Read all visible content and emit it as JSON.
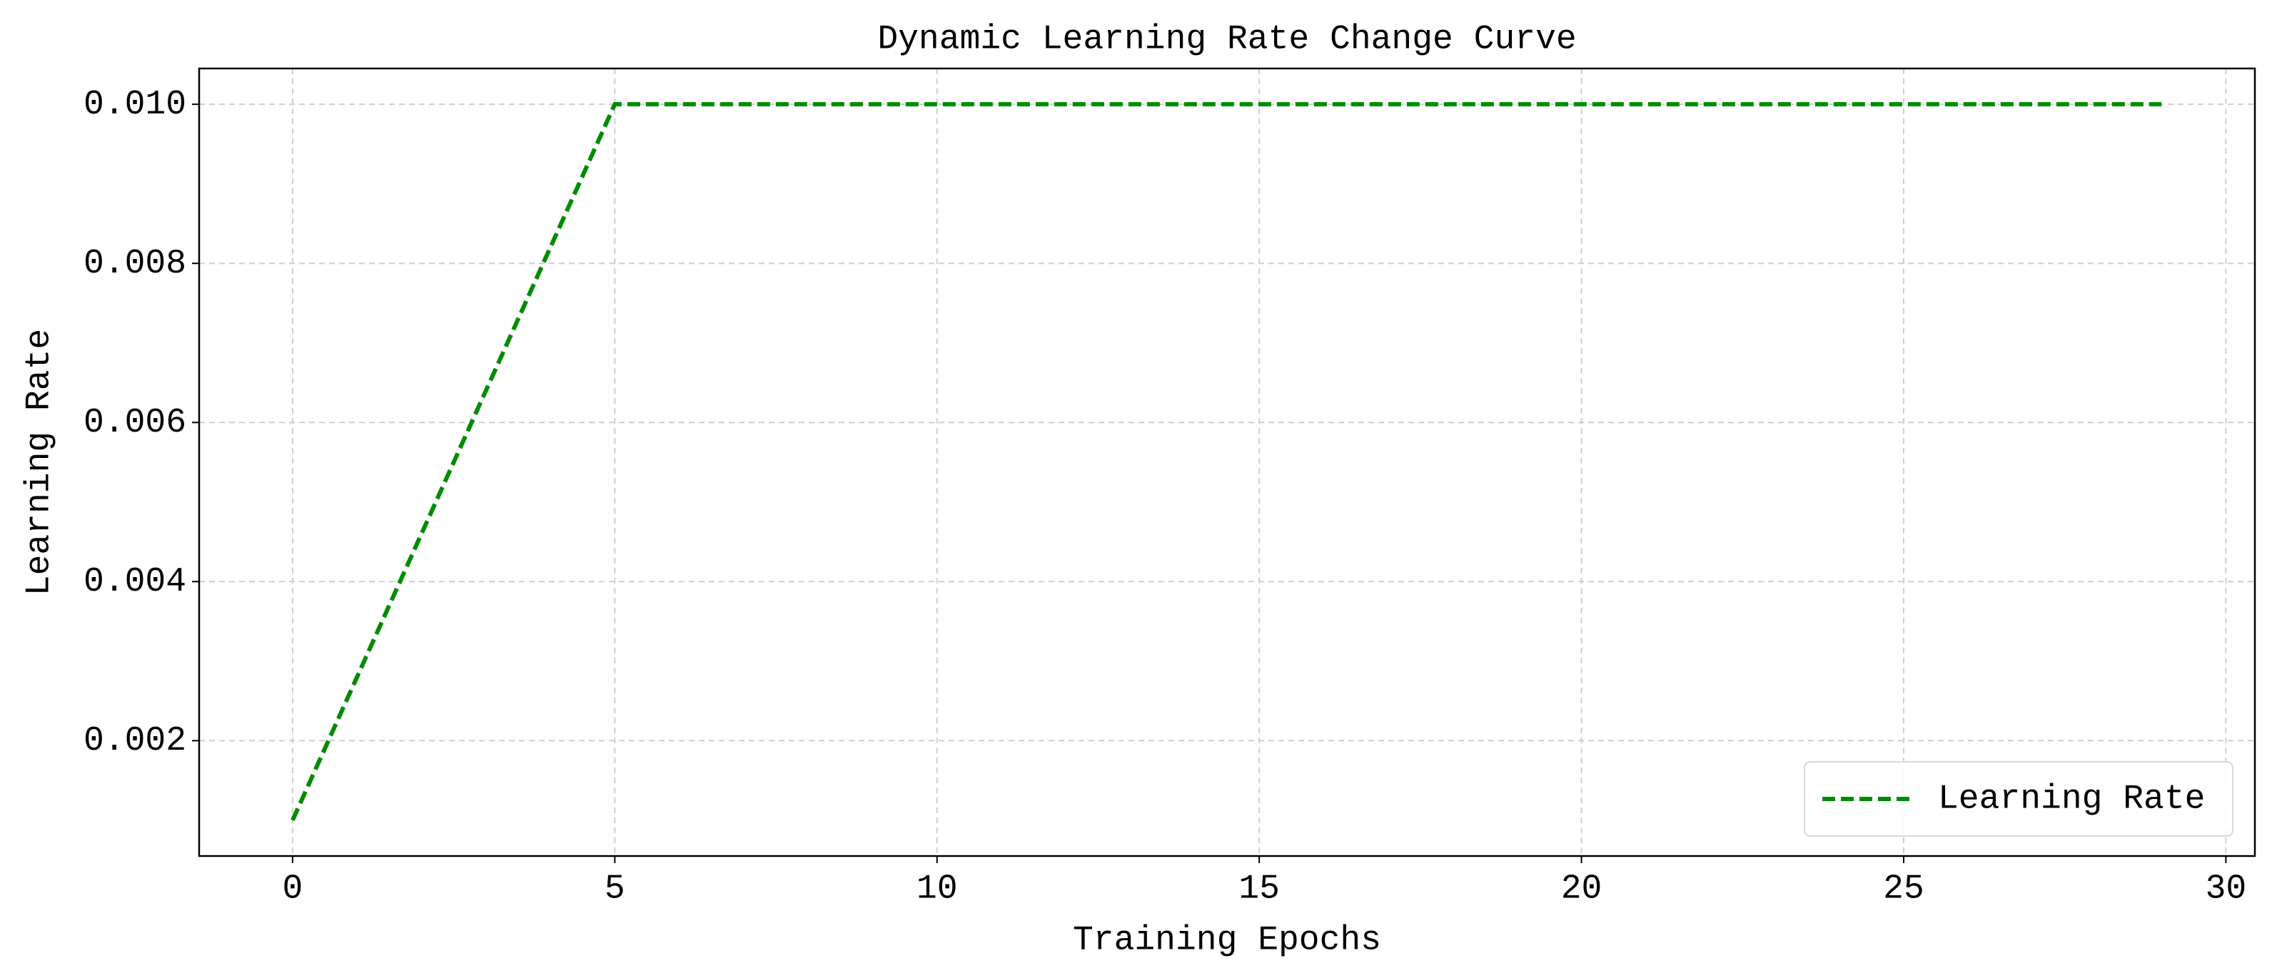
{
  "chart_data": {
    "type": "line",
    "title": "Dynamic Learning Rate Change Curve",
    "x_label": "Training Epochs",
    "y_label": "Learning Rate",
    "x": [
      0,
      1,
      2,
      3,
      4,
      5,
      6,
      7,
      8,
      9,
      10,
      11,
      12,
      13,
      14,
      15,
      16,
      17,
      18,
      19,
      20,
      21,
      22,
      23,
      24,
      25,
      26,
      27,
      28,
      29
    ],
    "series": [
      {
        "name": "Learning Rate",
        "color": "#008c00",
        "values": [
          0.001,
          0.0028,
          0.0046,
          0.0064,
          0.0082,
          0.01,
          0.01,
          0.01,
          0.01,
          0.01,
          0.01,
          0.01,
          0.01,
          0.01,
          0.01,
          0.01,
          0.01,
          0.01,
          0.01,
          0.01,
          0.01,
          0.01,
          0.01,
          0.01,
          0.01,
          0.01,
          0.01,
          0.01,
          0.01,
          0.01
        ]
      }
    ],
    "xlim": [
      -1.45,
      30.45
    ],
    "xticks": [
      0,
      5,
      10,
      15,
      20,
      25,
      30
    ],
    "ylim": [
      0.00055,
      0.01045
    ],
    "yticks": [
      0.002,
      0.004,
      0.006,
      0.008,
      {
        "value": 0.01,
        "label": "0.010"
      }
    ],
    "grid": true,
    "line_style": "dashed",
    "legend": "lower right"
  }
}
